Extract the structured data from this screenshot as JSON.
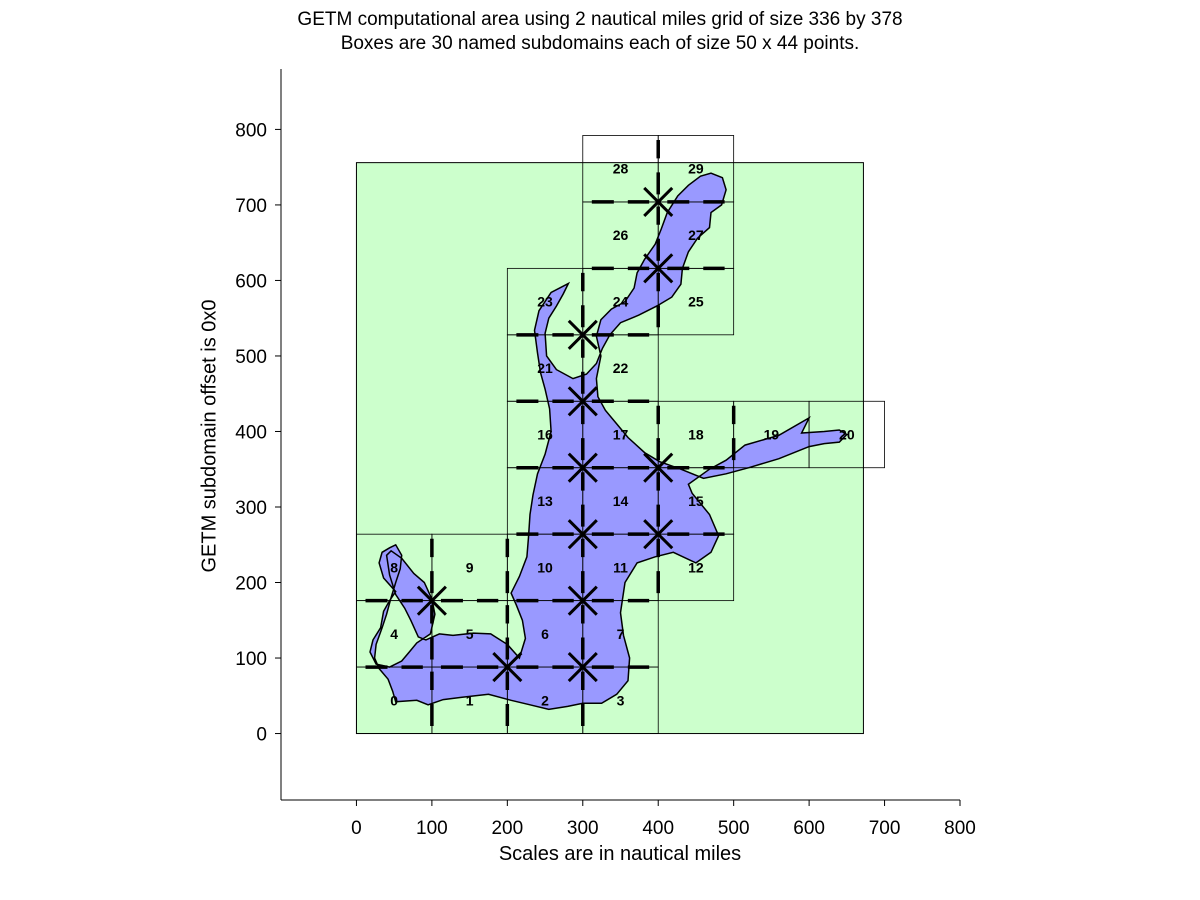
{
  "chart_data": {
    "type": "scatter",
    "title": "GETM computational area using 2 nautical miles grid of size 336 by 378",
    "subtitle": "Boxes are 30 named subdomains each of size 50 x 44 points.",
    "xlabel": "Scales are in nautical miles",
    "ylabel": "GETM subdomain offset is 0x0",
    "xlim": [
      -100,
      800
    ],
    "ylim": [
      -88,
      880
    ],
    "xticks": [
      0,
      100,
      200,
      300,
      400,
      500,
      600,
      700,
      800
    ],
    "yticks": [
      0,
      100,
      200,
      300,
      400,
      500,
      600,
      700,
      800
    ],
    "grid": false,
    "legend": "none",
    "computational_area": {
      "x": [
        0,
        672
      ],
      "y": [
        0,
        756
      ]
    },
    "subdomain_size": {
      "w": 100,
      "h": 88
    },
    "subdomains": [
      {
        "id": "0",
        "x0": 0,
        "y0": 0
      },
      {
        "id": "1",
        "x0": 100,
        "y0": 0
      },
      {
        "id": "2",
        "x0": 200,
        "y0": 0
      },
      {
        "id": "3",
        "x0": 300,
        "y0": 0
      },
      {
        "id": "4",
        "x0": 0,
        "y0": 88
      },
      {
        "id": "5",
        "x0": 100,
        "y0": 88
      },
      {
        "id": "6",
        "x0": 200,
        "y0": 88
      },
      {
        "id": "7",
        "x0": 300,
        "y0": 88
      },
      {
        "id": "8",
        "x0": 0,
        "y0": 176
      },
      {
        "id": "9",
        "x0": 100,
        "y0": 176
      },
      {
        "id": "10",
        "x0": 200,
        "y0": 176
      },
      {
        "id": "11",
        "x0": 300,
        "y0": 176
      },
      {
        "id": "12",
        "x0": 400,
        "y0": 176
      },
      {
        "id": "13",
        "x0": 200,
        "y0": 264
      },
      {
        "id": "14",
        "x0": 300,
        "y0": 264
      },
      {
        "id": "15",
        "x0": 400,
        "y0": 264
      },
      {
        "id": "16",
        "x0": 200,
        "y0": 352
      },
      {
        "id": "17",
        "x0": 300,
        "y0": 352
      },
      {
        "id": "18",
        "x0": 400,
        "y0": 352
      },
      {
        "id": "19",
        "x0": 500,
        "y0": 352
      },
      {
        "id": "20",
        "x0": 600,
        "y0": 352
      },
      {
        "id": "21",
        "x0": 200,
        "y0": 440
      },
      {
        "id": "22",
        "x0": 300,
        "y0": 440
      },
      {
        "id": "23",
        "x0": 200,
        "y0": 528
      },
      {
        "id": "24",
        "x0": 300,
        "y0": 528
      },
      {
        "id": "25",
        "x0": 400,
        "y0": 528
      },
      {
        "id": "26",
        "x0": 300,
        "y0": 616
      },
      {
        "id": "27",
        "x0": 400,
        "y0": 616
      },
      {
        "id": "28",
        "x0": 300,
        "y0": 704
      },
      {
        "id": "29",
        "x0": 400,
        "y0": 704
      }
    ],
    "cross_markers": [
      {
        "x": 100,
        "y": 176
      },
      {
        "x": 200,
        "y": 88
      },
      {
        "x": 300,
        "y": 88
      },
      {
        "x": 300,
        "y": 176
      },
      {
        "x": 300,
        "y": 264
      },
      {
        "x": 400,
        "y": 264
      },
      {
        "x": 300,
        "y": 352
      },
      {
        "x": 400,
        "y": 352
      },
      {
        "x": 300,
        "y": 440
      },
      {
        "x": 300,
        "y": 528
      },
      {
        "x": 400,
        "y": 616
      },
      {
        "x": 400,
        "y": 704
      }
    ],
    "sea_outline": [
      [
        52,
        42
      ],
      [
        80,
        44
      ],
      [
        95,
        38
      ],
      [
        115,
        45
      ],
      [
        140,
        48
      ],
      [
        175,
        52
      ],
      [
        205,
        44
      ],
      [
        230,
        38
      ],
      [
        255,
        32
      ],
      [
        280,
        36
      ],
      [
        300,
        40
      ],
      [
        325,
        40
      ],
      [
        345,
        52
      ],
      [
        360,
        70
      ],
      [
        362,
        100
      ],
      [
        354,
        130
      ],
      [
        350,
        160
      ],
      [
        356,
        200
      ],
      [
        372,
        226
      ],
      [
        396,
        234
      ],
      [
        420,
        240
      ],
      [
        450,
        226
      ],
      [
        470,
        240
      ],
      [
        480,
        262
      ],
      [
        468,
        290
      ],
      [
        445,
        318
      ],
      [
        440,
        330
      ],
      [
        468,
        350
      ],
      [
        490,
        362
      ],
      [
        515,
        382
      ],
      [
        560,
        395
      ],
      [
        600,
        418
      ],
      [
        590,
        398
      ],
      [
        620,
        400
      ],
      [
        640,
        402
      ],
      [
        650,
        396
      ],
      [
        640,
        386
      ],
      [
        620,
        384
      ],
      [
        600,
        380
      ],
      [
        560,
        364
      ],
      [
        520,
        352
      ],
      [
        490,
        344
      ],
      [
        460,
        338
      ],
      [
        430,
        350
      ],
      [
        402,
        360
      ],
      [
        382,
        372
      ],
      [
        360,
        392
      ],
      [
        345,
        410
      ],
      [
        330,
        428
      ],
      [
        320,
        446
      ],
      [
        318,
        470
      ],
      [
        324,
        500
      ],
      [
        318,
        526
      ],
      [
        324,
        548
      ],
      [
        338,
        562
      ],
      [
        356,
        572
      ],
      [
        368,
        590
      ],
      [
        372,
        610
      ],
      [
        382,
        628
      ],
      [
        396,
        648
      ],
      [
        404,
        668
      ],
      [
        412,
        690
      ],
      [
        426,
        712
      ],
      [
        440,
        726
      ],
      [
        456,
        738
      ],
      [
        470,
        742
      ],
      [
        485,
        736
      ],
      [
        490,
        720
      ],
      [
        484,
        700
      ],
      [
        470,
        690
      ],
      [
        468,
        670
      ],
      [
        452,
        656
      ],
      [
        440,
        638
      ],
      [
        432,
        616
      ],
      [
        430,
        595
      ],
      [
        418,
        578
      ],
      [
        398,
        566
      ],
      [
        374,
        554
      ],
      [
        350,
        544
      ],
      [
        336,
        528
      ],
      [
        326,
        510
      ],
      [
        318,
        490
      ],
      [
        305,
        476
      ],
      [
        287,
        470
      ],
      [
        265,
        482
      ],
      [
        252,
        500
      ],
      [
        250,
        530
      ],
      [
        255,
        550
      ],
      [
        265,
        566
      ],
      [
        274,
        582
      ],
      [
        281,
        596
      ],
      [
        258,
        584
      ],
      [
        242,
        560
      ],
      [
        236,
        534
      ],
      [
        240,
        504
      ],
      [
        244,
        478
      ],
      [
        250,
        456
      ],
      [
        256,
        430
      ],
      [
        258,
        400
      ],
      [
        250,
        370
      ],
      [
        240,
        344
      ],
      [
        234,
        316
      ],
      [
        230,
        290
      ],
      [
        228,
        260
      ],
      [
        226,
        234
      ],
      [
        216,
        208
      ],
      [
        205,
        186
      ],
      [
        212,
        170
      ],
      [
        220,
        150
      ],
      [
        224,
        126
      ],
      [
        216,
        100
      ],
      [
        200,
        118
      ],
      [
        178,
        132
      ],
      [
        155,
        133
      ],
      [
        128,
        130
      ],
      [
        110,
        132
      ],
      [
        92,
        124
      ],
      [
        82,
        128
      ],
      [
        72,
        150
      ],
      [
        64,
        166
      ],
      [
        52,
        184
      ],
      [
        44,
        210
      ],
      [
        40,
        236
      ],
      [
        46,
        242
      ],
      [
        60,
        232
      ],
      [
        76,
        212
      ],
      [
        90,
        200
      ],
      [
        100,
        178
      ],
      [
        104,
        158
      ],
      [
        98,
        132
      ],
      [
        80,
        120
      ],
      [
        70,
        108
      ],
      [
        60,
        96
      ],
      [
        44,
        88
      ],
      [
        26,
        92
      ],
      [
        18,
        108
      ],
      [
        22,
        124
      ],
      [
        32,
        140
      ],
      [
        36,
        162
      ],
      [
        44,
        176
      ],
      [
        52,
        188
      ],
      [
        36,
        206
      ],
      [
        30,
        226
      ],
      [
        34,
        240
      ],
      [
        44,
        246
      ],
      [
        52,
        250
      ],
      [
        60,
        236
      ],
      [
        58,
        218
      ],
      [
        52,
        200
      ],
      [
        46,
        180
      ],
      [
        40,
        158
      ],
      [
        34,
        140
      ],
      [
        26,
        118
      ],
      [
        24,
        100
      ],
      [
        30,
        86
      ],
      [
        42,
        72
      ],
      [
        48,
        56
      ]
    ],
    "colors": {
      "area_fill": "#ccffcc",
      "sea_fill": "#9999ff",
      "box_stroke": "#000000",
      "marker": "#000000"
    }
  }
}
